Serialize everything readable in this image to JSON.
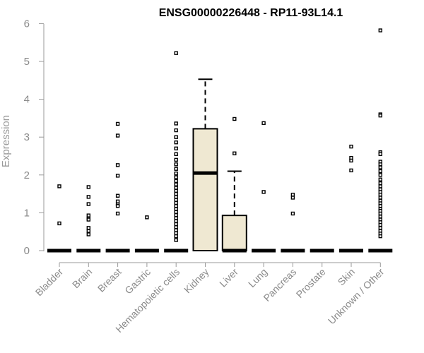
{
  "chart_data": {
    "type": "boxplot",
    "title": "ENSG00000226448 - RP11-93L14.1",
    "xlabel": "",
    "ylabel": "Expression",
    "ylim": [
      0,
      6
    ],
    "yticks": [
      "0",
      "1",
      "2",
      "3",
      "4",
      "5",
      "6"
    ],
    "grid": false,
    "box_fill": "#efe8d2",
    "categories": [
      "Bladder",
      "Brain",
      "Breast",
      "Gastric",
      "Hematopoietic cells",
      "Kidney",
      "Liver",
      "Lung",
      "Pancreas",
      "Prostate",
      "Skin",
      "Unknown / Other"
    ],
    "boxes": [
      {
        "category": "Bladder",
        "q1": 0,
        "median": 0,
        "q3": 0,
        "whisker_low": 0,
        "whisker_high": 0,
        "outliers": [
          1.7,
          0.72
        ]
      },
      {
        "category": "Brain",
        "q1": 0,
        "median": 0,
        "q3": 0,
        "whisker_low": 0,
        "whisker_high": 0,
        "outliers": [
          1.68,
          1.42,
          1.23,
          0.93,
          0.85,
          0.82,
          0.6,
          0.52,
          0.43
        ]
      },
      {
        "category": "Breast",
        "q1": 0,
        "median": 0,
        "q3": 0,
        "whisker_low": 0,
        "whisker_high": 0,
        "outliers": [
          3.35,
          3.04,
          2.26,
          1.98,
          1.45,
          1.3,
          1.22,
          1.18,
          0.98
        ]
      },
      {
        "category": "Gastric",
        "q1": 0,
        "median": 0,
        "q3": 0,
        "whisker_low": 0,
        "whisker_high": 0,
        "outliers": [
          0.88
        ]
      },
      {
        "category": "Hematopoietic cells",
        "q1": 0,
        "median": 0,
        "q3": 0,
        "whisker_low": 0,
        "whisker_high": 0,
        "outliers": [
          5.22,
          3.36,
          3.18,
          3.0,
          2.86,
          2.7,
          2.55,
          2.4,
          2.28,
          2.16,
          2.04,
          1.94,
          1.84,
          1.75,
          1.66,
          1.58,
          1.5,
          1.42,
          1.34,
          1.26,
          1.18,
          1.1,
          1.02,
          0.94,
          0.86,
          0.78,
          0.7,
          0.62,
          0.54,
          0.46,
          0.38,
          0.28
        ]
      },
      {
        "category": "Kidney",
        "q1": 0,
        "median": 2.05,
        "q3": 3.22,
        "whisker_low": 0,
        "whisker_high": 4.53,
        "outliers": []
      },
      {
        "category": "Liver",
        "q1": 0,
        "median": 0,
        "q3": 0.93,
        "whisker_low": 0,
        "whisker_high": 2.1,
        "outliers": [
          3.48,
          2.57
        ]
      },
      {
        "category": "Lung",
        "q1": 0,
        "median": 0,
        "q3": 0,
        "whisker_low": 0,
        "whisker_high": 0,
        "outliers": [
          3.37,
          1.55
        ]
      },
      {
        "category": "Pancreas",
        "q1": 0,
        "median": 0,
        "q3": 0,
        "whisker_low": 0,
        "whisker_high": 0,
        "outliers": [
          1.48,
          1.4,
          0.98
        ]
      },
      {
        "category": "Prostate",
        "q1": 0,
        "median": 0,
        "q3": 0,
        "whisker_low": 0,
        "whisker_high": 0,
        "outliers": []
      },
      {
        "category": "Skin",
        "q1": 0,
        "median": 0,
        "q3": 0,
        "whisker_low": 0,
        "whisker_high": 0,
        "outliers": [
          2.75,
          2.45,
          2.38,
          2.12
        ]
      },
      {
        "category": "Unknown / Other",
        "q1": 0,
        "median": 0,
        "q3": 0,
        "whisker_low": 0,
        "whisker_high": 0,
        "outliers": [
          5.82,
          3.6,
          3.57,
          2.6,
          2.55,
          2.35,
          2.28,
          2.2,
          2.1,
          2.0,
          1.88,
          1.78,
          1.7,
          1.62,
          1.55,
          1.48,
          1.4,
          1.32,
          1.25,
          1.18,
          1.1,
          1.05,
          0.98,
          0.9,
          0.82,
          0.75,
          0.68,
          0.6,
          0.52,
          0.45,
          0.38
        ]
      }
    ]
  }
}
